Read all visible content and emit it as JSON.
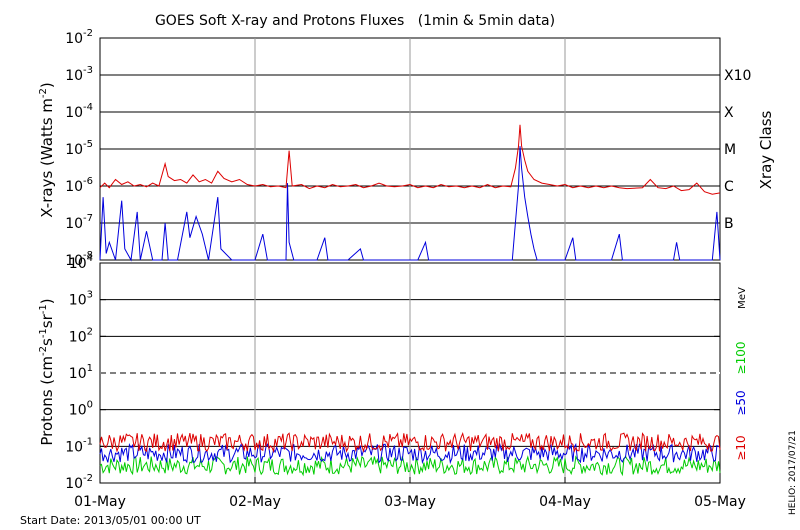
{
  "chart_data": [
    {
      "type": "line",
      "title": "GOES Soft X-ray and Protons Fluxes   (1min & 5min data)",
      "ylabel": "X-rays (Watts m^-2)",
      "ylabel_main": "X-rays (Watts m",
      "ylabel_exp": "-2",
      "ylabel_close": ")",
      "right_label": "Xray Class",
      "y_scale": "log",
      "ylim": [
        1e-08,
        0.01
      ],
      "grid": true,
      "yticks": [
        {
          "base": "10",
          "exp": "-8"
        },
        {
          "base": "10",
          "exp": "-7"
        },
        {
          "base": "10",
          "exp": "-6"
        },
        {
          "base": "10",
          "exp": "-5"
        },
        {
          "base": "10",
          "exp": "-4"
        },
        {
          "base": "10",
          "exp": "-3"
        },
        {
          "base": "10",
          "exp": "-2"
        }
      ],
      "class_labels": [
        {
          "label": "B",
          "value": 1e-07
        },
        {
          "label": "C",
          "value": 1e-06
        },
        {
          "label": "M",
          "value": 1e-05
        },
        {
          "label": "X",
          "value": 0.0001
        },
        {
          "label": "X10",
          "value": 0.001
        }
      ],
      "series": [
        {
          "color": "#dd0000",
          "points": [
            [
              0.0,
              9e-07
            ],
            [
              0.03,
              1.2e-06
            ],
            [
              0.06,
              9e-07
            ],
            [
              0.1,
              1.5e-06
            ],
            [
              0.14,
              1.1e-06
            ],
            [
              0.18,
              1.3e-06
            ],
            [
              0.22,
              1e-06
            ],
            [
              0.26,
              1.1e-06
            ],
            [
              0.3,
              9.5e-07
            ],
            [
              0.34,
              1.2e-06
            ],
            [
              0.38,
              1e-06
            ],
            [
              0.42,
              4e-06
            ],
            [
              0.44,
              1.8e-06
            ],
            [
              0.48,
              1.4e-06
            ],
            [
              0.52,
              1.5e-06
            ],
            [
              0.56,
              1.2e-06
            ],
            [
              0.6,
              2e-06
            ],
            [
              0.64,
              1.3e-06
            ],
            [
              0.68,
              1.5e-06
            ],
            [
              0.72,
              1.2e-06
            ],
            [
              0.76,
              2.5e-06
            ],
            [
              0.8,
              1.6e-06
            ],
            [
              0.85,
              1.3e-06
            ],
            [
              0.9,
              1.5e-06
            ],
            [
              0.95,
              1.1e-06
            ],
            [
              1.0,
              1e-06
            ],
            [
              1.05,
              1.1e-06
            ],
            [
              1.1,
              9.5e-07
            ],
            [
              1.15,
              1e-06
            ],
            [
              1.2,
              9e-07
            ],
            [
              1.22,
              9e-06
            ],
            [
              1.24,
              1e-06
            ],
            [
              1.3,
              1.1e-06
            ],
            [
              1.35,
              8.5e-07
            ],
            [
              1.4,
              1e-06
            ],
            [
              1.45,
              9e-07
            ],
            [
              1.5,
              1.1e-06
            ],
            [
              1.55,
              9.5e-07
            ],
            [
              1.6,
              1e-06
            ],
            [
              1.65,
              1.1e-06
            ],
            [
              1.7,
              9e-07
            ],
            [
              1.75,
              1e-06
            ],
            [
              1.8,
              1.2e-06
            ],
            [
              1.85,
              1e-06
            ],
            [
              1.9,
              9.5e-07
            ],
            [
              1.95,
              1e-06
            ],
            [
              2.0,
              1.1e-06
            ],
            [
              2.05,
              9e-07
            ],
            [
              2.1,
              1e-06
            ],
            [
              2.15,
              9e-07
            ],
            [
              2.2,
              1.1e-06
            ],
            [
              2.25,
              9.5e-07
            ],
            [
              2.3,
              1e-06
            ],
            [
              2.35,
              9e-07
            ],
            [
              2.4,
              1e-06
            ],
            [
              2.45,
              9e-07
            ],
            [
              2.5,
              1.1e-06
            ],
            [
              2.55,
              9e-07
            ],
            [
              2.6,
              1e-06
            ],
            [
              2.65,
              9.5e-07
            ],
            [
              2.68,
              3e-06
            ],
            [
              2.7,
              1.2e-05
            ],
            [
              2.71,
              4.5e-05
            ],
            [
              2.72,
              1.2e-05
            ],
            [
              2.74,
              5e-06
            ],
            [
              2.76,
              2.5e-06
            ],
            [
              2.8,
              1.5e-06
            ],
            [
              2.85,
              1.2e-06
            ],
            [
              2.9,
              1.1e-06
            ],
            [
              2.95,
              1e-06
            ],
            [
              3.0,
              1.1e-06
            ],
            [
              3.05,
              9e-07
            ],
            [
              3.1,
              1e-06
            ],
            [
              3.15,
              9e-07
            ],
            [
              3.2,
              1e-06
            ],
            [
              3.25,
              9e-07
            ],
            [
              3.3,
              1e-06
            ],
            [
              3.35,
              9e-07
            ],
            [
              3.4,
              8.5e-07
            ],
            [
              3.5,
              9e-07
            ],
            [
              3.55,
              1.5e-06
            ],
            [
              3.6,
              9e-07
            ],
            [
              3.65,
              8.5e-07
            ],
            [
              3.7,
              1e-06
            ],
            [
              3.75,
              7.5e-07
            ],
            [
              3.8,
              8e-07
            ],
            [
              3.85,
              1.2e-06
            ],
            [
              3.9,
              7e-07
            ],
            [
              3.95,
              6e-07
            ],
            [
              4.0,
              6.5e-07
            ]
          ]
        },
        {
          "color": "#0000dd",
          "points": [
            [
              0.0,
              1e-08
            ],
            [
              0.02,
              5e-07
            ],
            [
              0.04,
              1.5e-08
            ],
            [
              0.06,
              3e-08
            ],
            [
              0.1,
              1e-08
            ],
            [
              0.14,
              4e-07
            ],
            [
              0.16,
              2e-08
            ],
            [
              0.2,
              1e-08
            ],
            [
              0.24,
              2e-07
            ],
            [
              0.26,
              1e-08
            ],
            [
              0.3,
              6e-08
            ],
            [
              0.34,
              1e-08
            ],
            [
              0.4,
              1e-08
            ],
            [
              0.42,
              1e-07
            ],
            [
              0.44,
              1e-08
            ],
            [
              0.5,
              1e-08
            ],
            [
              0.56,
              2e-07
            ],
            [
              0.58,
              4e-08
            ],
            [
              0.62,
              1.5e-07
            ],
            [
              0.66,
              5e-08
            ],
            [
              0.7,
              1e-08
            ],
            [
              0.76,
              5e-07
            ],
            [
              0.78,
              2e-08
            ],
            [
              0.85,
              1e-08
            ],
            [
              1.0,
              1e-08
            ],
            [
              1.05,
              5e-08
            ],
            [
              1.08,
              1e-08
            ],
            [
              1.15,
              1e-08
            ],
            [
              1.2,
              1e-08
            ],
            [
              1.21,
              1.2e-06
            ],
            [
              1.22,
              3e-08
            ],
            [
              1.25,
              1e-08
            ],
            [
              1.4,
              1e-08
            ],
            [
              1.45,
              4e-08
            ],
            [
              1.47,
              1e-08
            ],
            [
              1.6,
              1e-08
            ],
            [
              1.68,
              2e-08
            ],
            [
              1.7,
              1e-08
            ],
            [
              1.95,
              1e-08
            ],
            [
              2.05,
              1e-08
            ],
            [
              2.1,
              3e-08
            ],
            [
              2.12,
              1e-08
            ],
            [
              2.5,
              1e-08
            ],
            [
              2.6,
              1e-08
            ],
            [
              2.66,
              1e-08
            ],
            [
              2.68,
              1e-07
            ],
            [
              2.7,
              1e-06
            ],
            [
              2.71,
              1.2e-05
            ],
            [
              2.72,
              3e-06
            ],
            [
              2.74,
              5e-07
            ],
            [
              2.76,
              1.5e-07
            ],
            [
              2.78,
              5e-08
            ],
            [
              2.8,
              2e-08
            ],
            [
              2.82,
              1e-08
            ],
            [
              3.0,
              1e-08
            ],
            [
              3.05,
              4e-08
            ],
            [
              3.07,
              1e-08
            ],
            [
              3.3,
              1e-08
            ],
            [
              3.35,
              5e-08
            ],
            [
              3.37,
              1e-08
            ],
            [
              3.7,
              1e-08
            ],
            [
              3.72,
              3e-08
            ],
            [
              3.74,
              1e-08
            ],
            [
              3.95,
              1e-08
            ],
            [
              3.98,
              2e-07
            ],
            [
              4.0,
              1e-08
            ]
          ]
        }
      ]
    },
    {
      "type": "line",
      "ylabel": "Protons (cm^-2 s^-1 sr^-1)",
      "y_scale": "log",
      "ylim": [
        0.01,
        10000
      ],
      "grid": true,
      "reference_line": {
        "value": 10,
        "style": "dashed"
      },
      "yticks": [
        {
          "base": "10",
          "exp": "-2"
        },
        {
          "base": "10",
          "exp": "-1"
        },
        {
          "base": "10",
          "exp": "0"
        },
        {
          "base": "10",
          "exp": "1"
        },
        {
          "base": "10",
          "exp": "2"
        },
        {
          "base": "10",
          "exp": "3"
        },
        {
          "base": "10",
          "exp": "4"
        }
      ],
      "right_labels": [
        {
          "text": "MeV",
          "color": "#000000"
        },
        {
          "text": "≥100",
          "color": "#00cc00"
        },
        {
          "text": "≥50",
          "color": "#0000dd"
        },
        {
          "text": "≥10",
          "color": "#dd0000"
        }
      ],
      "series": [
        {
          "name": "≥10",
          "color": "#dd0000",
          "level": 0.13
        },
        {
          "name": "≥50",
          "color": "#0000dd",
          "level": 0.065
        },
        {
          "name": "≥100",
          "color": "#00cc00",
          "level": 0.03
        }
      ],
      "xlabels": [
        "01-May",
        "02-May",
        "03-May",
        "04-May",
        "05-May"
      ],
      "xlim": [
        0,
        4
      ]
    }
  ],
  "footer": {
    "start_date": "Start Date: 2013/05/01 00:00 UT",
    "credit": "HELIO: 2017/07/21"
  }
}
